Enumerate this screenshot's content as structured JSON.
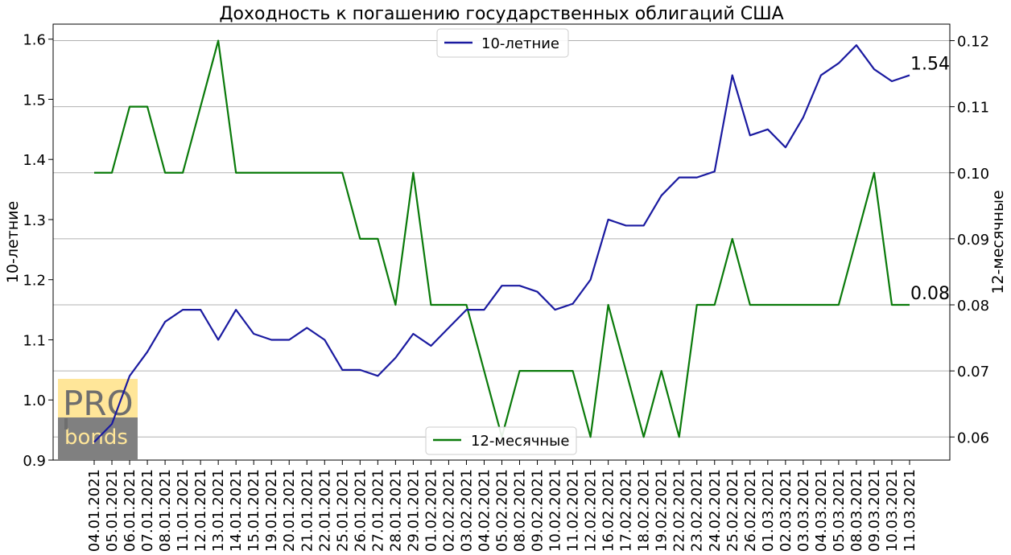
{
  "chart_data": {
    "type": "line",
    "title": "Доходность к погашению государственных облигаций США",
    "xlabel": "",
    "x": [
      "04.01.2021",
      "05.01.2021",
      "06.01.2021",
      "07.01.2021",
      "08.01.2021",
      "11.01.2021",
      "12.01.2021",
      "13.01.2021",
      "14.01.2021",
      "15.01.2021",
      "19.01.2021",
      "20.01.2021",
      "21.01.2021",
      "22.01.2021",
      "25.01.2021",
      "26.01.2021",
      "27.01.2021",
      "28.01.2021",
      "29.01.2021",
      "01.02.2021",
      "02.02.2021",
      "03.02.2021",
      "04.02.2021",
      "05.02.2021",
      "08.02.2021",
      "09.02.2021",
      "10.02.2021",
      "11.02.2021",
      "12.02.2021",
      "16.02.2021",
      "17.02.2021",
      "18.02.2021",
      "19.02.2021",
      "22.02.2021",
      "23.02.2021",
      "24.02.2021",
      "25.02.2021",
      "26.02.2021",
      "01.03.2021",
      "02.03.2021",
      "03.03.2021",
      "04.03.2021",
      "05.03.2021",
      "08.03.2021",
      "09.03.2021",
      "10.03.2021",
      "11.03.2021"
    ],
    "series": [
      {
        "name": "10-летние",
        "axis": "left",
        "color": "#1a1aa0",
        "values": [
          0.93,
          0.96,
          1.04,
          1.08,
          1.13,
          1.15,
          1.15,
          1.1,
          1.15,
          1.11,
          1.1,
          1.1,
          1.12,
          1.1,
          1.05,
          1.05,
          1.04,
          1.07,
          1.11,
          1.09,
          1.12,
          1.15,
          1.15,
          1.19,
          1.19,
          1.18,
          1.15,
          1.16,
          1.2,
          1.3,
          1.29,
          1.29,
          1.34,
          1.37,
          1.37,
          1.38,
          1.54,
          1.44,
          1.45,
          1.42,
          1.47,
          1.54,
          1.56,
          1.59,
          1.55,
          1.53,
          1.54
        ],
        "end_label": "1.54"
      },
      {
        "name": "12-месячные",
        "axis": "right",
        "color": "#0a7a0a",
        "values": [
          0.1,
          0.1,
          0.11,
          0.11,
          0.1,
          0.1,
          0.11,
          0.12,
          0.1,
          0.1,
          0.1,
          0.1,
          0.1,
          0.1,
          0.1,
          0.09,
          0.09,
          0.08,
          0.1,
          0.08,
          0.08,
          0.08,
          0.07,
          0.06,
          0.07,
          0.07,
          0.07,
          0.07,
          0.06,
          0.08,
          0.07,
          0.06,
          0.07,
          0.06,
          0.08,
          0.08,
          0.09,
          0.08,
          0.08,
          0.08,
          0.08,
          0.08,
          0.08,
          0.09,
          0.1,
          0.08,
          0.08
        ],
        "end_label": "0.08"
      }
    ],
    "left_axis": {
      "label": "10-летние",
      "ylim": [
        0.9,
        1.625
      ],
      "ticks": [
        "0.9",
        "1.0",
        "1.1",
        "1.2",
        "1.3",
        "1.4",
        "1.5",
        "1.6"
      ]
    },
    "right_axis": {
      "label": "12-месячные",
      "ylim": [
        0.0565,
        0.1225
      ],
      "ticks": [
        "0.06",
        "0.07",
        "0.08",
        "0.09",
        "0.10",
        "0.11",
        "0.12"
      ]
    },
    "grid": "horizontal lines at right-axis ticks",
    "legend": [
      {
        "label": "10-летние",
        "placement": "top-center"
      },
      {
        "label": "12-месячные",
        "placement": "bottom-center"
      }
    ]
  },
  "logo": {
    "line1": "PRO",
    "line2": "bonds",
    "top_color": "#ffe699",
    "bottom_color": "#808080"
  }
}
